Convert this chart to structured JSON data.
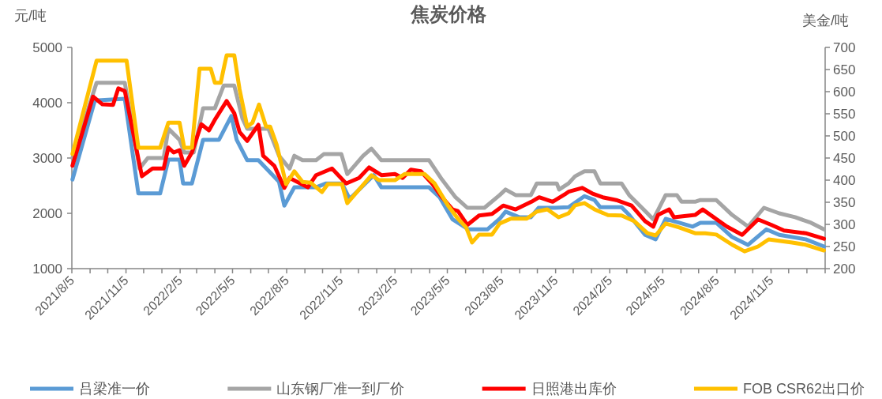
{
  "chart_data": {
    "type": "line",
    "title": "焦炭价格",
    "ylabel": "元/吨",
    "y2label": "美金/吨",
    "xlim": [
      "2021-08-05",
      "2025-02-05"
    ],
    "xticks": [
      {
        "value": "2021-08-05",
        "label": "2021/8/5"
      },
      {
        "value": "2021-09-05",
        "label": null
      },
      {
        "value": "2021-10-05",
        "label": null
      },
      {
        "value": "2021-11-05",
        "label": "2021/11/5"
      },
      {
        "value": "2021-12-05",
        "label": null
      },
      {
        "value": "2022-01-05",
        "label": null
      },
      {
        "value": "2022-02-05",
        "label": "2022/2/5"
      },
      {
        "value": "2022-03-05",
        "label": null
      },
      {
        "value": "2022-04-05",
        "label": null
      },
      {
        "value": "2022-05-05",
        "label": "2022/5/5"
      },
      {
        "value": "2022-06-05",
        "label": null
      },
      {
        "value": "2022-07-05",
        "label": null
      },
      {
        "value": "2022-08-05",
        "label": "2022/8/5"
      },
      {
        "value": "2022-09-05",
        "label": null
      },
      {
        "value": "2022-10-05",
        "label": null
      },
      {
        "value": "2022-11-05",
        "label": "2022/11/5"
      },
      {
        "value": "2022-12-05",
        "label": null
      },
      {
        "value": "2023-01-05",
        "label": null
      },
      {
        "value": "2023-02-05",
        "label": "2023/2/5"
      },
      {
        "value": "2023-03-05",
        "label": null
      },
      {
        "value": "2023-04-05",
        "label": null
      },
      {
        "value": "2023-05-05",
        "label": "2023/5/5"
      },
      {
        "value": "2023-06-05",
        "label": null
      },
      {
        "value": "2023-07-05",
        "label": null
      },
      {
        "value": "2023-08-05",
        "label": "2023/8/5"
      },
      {
        "value": "2023-09-05",
        "label": null
      },
      {
        "value": "2023-10-05",
        "label": null
      },
      {
        "value": "2023-11-05",
        "label": "2023/11/5"
      },
      {
        "value": "2023-12-05",
        "label": null
      },
      {
        "value": "2024-01-05",
        "label": null
      },
      {
        "value": "2024-02-05",
        "label": "2024/2/5"
      },
      {
        "value": "2024-03-05",
        "label": null
      },
      {
        "value": "2024-04-05",
        "label": null
      },
      {
        "value": "2024-05-05",
        "label": "2024/5/5"
      },
      {
        "value": "2024-06-05",
        "label": null
      },
      {
        "value": "2024-07-05",
        "label": null
      },
      {
        "value": "2024-08-05",
        "label": "2024/8/5"
      },
      {
        "value": "2024-09-05",
        "label": null
      },
      {
        "value": "2024-10-05",
        "label": null
      },
      {
        "value": "2024-11-05",
        "label": "2024/11/5"
      },
      {
        "value": "2024-12-05",
        "label": null
      },
      {
        "value": "2025-01-05",
        "label": null
      },
      {
        "value": "2025-02-05",
        "label": null
      }
    ],
    "ylim": [
      1000,
      5000
    ],
    "yticks": [
      1000,
      2000,
      3000,
      4000,
      5000
    ],
    "y2lim": [
      200,
      700
    ],
    "y2ticks": [
      200,
      250,
      300,
      350,
      400,
      450,
      500,
      550,
      600,
      650,
      700
    ],
    "legend": "bottom",
    "series": [
      {
        "name": "吕梁准一价",
        "color": "#5b9bd5",
        "x": [
          "2021-08-06",
          "2021-09-13",
          "2021-11-03",
          "2021-11-26",
          "2022-01-02",
          "2022-01-16",
          "2022-02-04",
          "2022-02-10",
          "2022-02-25",
          "2022-03-16",
          "2022-04-12",
          "2022-05-03",
          "2022-05-12",
          "2022-05-30",
          "2022-06-18",
          "2022-07-23",
          "2022-08-01",
          "2022-08-18",
          "2022-09-24",
          "2022-10-11",
          "2022-11-07",
          "2022-11-20",
          "2022-12-31",
          "2023-01-13",
          "2023-04-04",
          "2023-04-22",
          "2023-05-14",
          "2023-06-10",
          "2023-07-12",
          "2023-08-02",
          "2023-08-12",
          "2023-09-04",
          "2023-09-24",
          "2023-10-07",
          "2023-11-04",
          "2023-11-27",
          "2023-12-24",
          "2024-01-10",
          "2024-01-20",
          "2024-02-25",
          "2024-03-09",
          "2024-04-05",
          "2024-04-23",
          "2024-05-10",
          "2024-06-02",
          "2024-06-25",
          "2024-07-08",
          "2024-08-04",
          "2024-08-31",
          "2024-09-27",
          "2024-10-28",
          "2024-11-19",
          "2025-01-03",
          "2025-02-03"
        ],
        "values": [
          2610,
          4040,
          4070,
          2360,
          2360,
          2970,
          2970,
          2540,
          2540,
          3330,
          3330,
          3760,
          3330,
          2960,
          2960,
          2570,
          2140,
          2470,
          2470,
          2540,
          2540,
          2260,
          2690,
          2470,
          2470,
          2290,
          1890,
          1710,
          1710,
          1900,
          2030,
          1930,
          1930,
          2100,
          2100,
          2110,
          2310,
          2240,
          2110,
          2110,
          1970,
          1610,
          1530,
          1900,
          1830,
          1760,
          1830,
          1830,
          1570,
          1430,
          1710,
          1610,
          1530,
          1400
        ]
      },
      {
        "name": "山东钢厂准一到厂价",
        "color": "#a5a5a5",
        "x": [
          "2021-08-06",
          "2021-09-16",
          "2021-11-03",
          "2021-11-28",
          "2021-12-12",
          "2022-01-08",
          "2022-01-16",
          "2022-02-04",
          "2022-02-12",
          "2022-02-28",
          "2022-03-16",
          "2022-04-05",
          "2022-04-20",
          "2022-05-08",
          "2022-05-22",
          "2022-05-30",
          "2022-07-05",
          "2022-07-23",
          "2022-08-10",
          "2022-08-18",
          "2022-09-01",
          "2022-09-24",
          "2022-10-07",
          "2022-11-06",
          "2022-11-16",
          "2022-12-13",
          "2022-12-27",
          "2023-01-13",
          "2023-04-04",
          "2023-04-26",
          "2023-05-19",
          "2023-06-08",
          "2023-07-07",
          "2023-08-02",
          "2023-08-12",
          "2023-08-29",
          "2023-09-24",
          "2023-10-04",
          "2023-11-07",
          "2023-11-11",
          "2023-11-27",
          "2023-12-08",
          "2023-12-24",
          "2024-01-10",
          "2024-01-20",
          "2024-02-25",
          "2024-03-09",
          "2024-04-09",
          "2024-04-19",
          "2024-05-10",
          "2024-05-29",
          "2024-06-06",
          "2024-06-29",
          "2024-07-08",
          "2024-08-04",
          "2024-08-31",
          "2024-09-27",
          "2024-10-24",
          "2024-11-19",
          "2024-12-16",
          "2025-01-12",
          "2025-02-03"
        ],
        "values": [
          3000,
          4360,
          4360,
          2810,
          3000,
          3000,
          3530,
          3330,
          3100,
          3100,
          3900,
          3900,
          4310,
          4310,
          3710,
          3530,
          3530,
          3040,
          2810,
          3040,
          2960,
          2960,
          3070,
          3070,
          2710,
          3040,
          3170,
          2960,
          2960,
          2610,
          2290,
          2100,
          2100,
          2330,
          2430,
          2330,
          2330,
          2540,
          2540,
          2430,
          2540,
          2670,
          2760,
          2760,
          2540,
          2540,
          2330,
          2000,
          1890,
          2330,
          2330,
          2210,
          2210,
          2240,
          2240,
          1970,
          1760,
          2100,
          2000,
          1930,
          1830,
          1710
        ]
      },
      {
        "name": "日照港出库价",
        "color": "#ff0000",
        "x": [
          "2021-08-06",
          "2021-09-10",
          "2021-09-26",
          "2021-10-14",
          "2021-10-23",
          "2021-11-03",
          "2021-11-15",
          "2021-12-02",
          "2021-12-20",
          "2022-01-08",
          "2022-01-16",
          "2022-01-25",
          "2022-02-04",
          "2022-02-12",
          "2022-02-25",
          "2022-03-13",
          "2022-03-26",
          "2022-04-06",
          "2022-04-25",
          "2022-05-08",
          "2022-05-17",
          "2022-05-30",
          "2022-06-18",
          "2022-06-26",
          "2022-07-15",
          "2022-08-01",
          "2022-08-10",
          "2022-09-10",
          "2022-09-24",
          "2022-10-21",
          "2022-11-14",
          "2022-12-06",
          "2022-12-23",
          "2023-01-13",
          "2023-02-05",
          "2023-02-18",
          "2023-03-04",
          "2023-03-21",
          "2023-04-09",
          "2023-04-26",
          "2023-05-14",
          "2023-05-23",
          "2023-06-08",
          "2023-06-28",
          "2023-07-20",
          "2023-08-08",
          "2023-08-29",
          "2023-09-25",
          "2023-10-08",
          "2023-10-31",
          "2023-11-23",
          "2023-11-27",
          "2023-12-20",
          "2024-01-06",
          "2024-01-24",
          "2024-02-16",
          "2024-03-13",
          "2024-04-05",
          "2024-04-19",
          "2024-04-27",
          "2024-05-16",
          "2024-05-24",
          "2024-06-29",
          "2024-07-12",
          "2024-08-22",
          "2024-09-17",
          "2024-10-14",
          "2024-11-06",
          "2024-11-27",
          "2025-01-03",
          "2025-02-03"
        ],
        "values": [
          2860,
          4110,
          3970,
          3960,
          4260,
          4210,
          3570,
          2670,
          2810,
          2810,
          3190,
          3100,
          3140,
          2860,
          3100,
          3610,
          3500,
          3710,
          4030,
          3810,
          3470,
          3310,
          3600,
          3040,
          2860,
          2460,
          2640,
          2470,
          2690,
          2810,
          2540,
          2640,
          2830,
          2690,
          2710,
          2640,
          2790,
          2760,
          2540,
          2290,
          2070,
          2040,
          1790,
          1960,
          1990,
          2140,
          2070,
          2210,
          2290,
          2210,
          2360,
          2390,
          2460,
          2360,
          2290,
          2240,
          2140,
          1860,
          1760,
          1970,
          2070,
          1930,
          1970,
          2070,
          1760,
          1610,
          1890,
          1790,
          1690,
          1640,
          1540
        ]
      },
      {
        "name": "FOB CSR62出口价",
        "color": "#ffc000",
        "axis": "y2",
        "x": [
          "2021-08-06",
          "2021-09-16",
          "2021-11-06",
          "2021-11-26",
          "2022-01-02",
          "2022-01-16",
          "2022-02-04",
          "2022-02-12",
          "2022-02-25",
          "2022-03-10",
          "2022-03-29",
          "2022-04-05",
          "2022-04-15",
          "2022-04-20",
          "2022-04-25",
          "2022-05-08",
          "2022-05-17",
          "2022-05-30",
          "2022-06-08",
          "2022-06-19",
          "2022-07-01",
          "2022-07-08",
          "2022-07-19",
          "2022-08-04",
          "2022-08-18",
          "2022-09-01",
          "2022-09-15",
          "2022-10-04",
          "2022-10-14",
          "2022-11-07",
          "2022-11-16",
          "2022-12-27",
          "2023-01-09",
          "2023-02-05",
          "2023-02-22",
          "2023-03-27",
          "2023-04-13",
          "2023-05-06",
          "2023-05-23",
          "2023-06-06",
          "2023-06-16",
          "2023-06-28",
          "2023-07-20",
          "2023-08-02",
          "2023-08-21",
          "2023-09-17",
          "2023-10-04",
          "2023-10-22",
          "2023-11-10",
          "2023-11-27",
          "2023-12-08",
          "2023-12-24",
          "2024-01-10",
          "2024-02-02",
          "2024-02-25",
          "2024-03-18",
          "2024-04-09",
          "2024-04-23",
          "2024-05-10",
          "2024-06-02",
          "2024-06-29",
          "2024-07-16",
          "2024-08-04",
          "2024-08-31",
          "2024-09-21",
          "2024-10-14",
          "2024-11-01",
          "2024-12-11",
          "2025-01-03",
          "2025-02-03"
        ],
        "values": [
          459,
          670,
          670,
          473,
          473,
          530,
          530,
          473,
          473,
          652,
          652,
          620,
          620,
          652,
          682,
          682,
          605,
          521,
          530,
          571,
          521,
          521,
          480,
          391,
          420,
          396,
          394,
          373,
          391,
          391,
          348,
          411,
          400,
          400,
          414,
          414,
          393,
          343,
          313,
          293,
          259,
          277,
          277,
          302,
          313,
          313,
          329,
          334,
          316,
          325,
          343,
          348,
          334,
          321,
          320,
          307,
          280,
          275,
          302,
          293,
          280,
          280,
          277,
          254,
          239,
          250,
          266,
          259,
          254,
          241
        ]
      }
    ]
  }
}
